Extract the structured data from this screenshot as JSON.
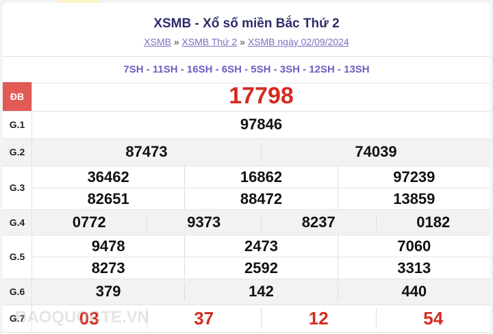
{
  "header": {
    "title": "XSMB - Xổ số miền Bắc Thứ 2"
  },
  "breadcrumb": {
    "items": [
      "XSMB",
      "XSMB Thứ 2",
      "XSMB ngày 02/09/2024"
    ],
    "separator": "»"
  },
  "codes": "7SH - 11SH - 16SH - 6SH - 5SH - 3SH - 12SH - 13SH",
  "prizes": {
    "db": {
      "label": "ĐB",
      "numbers": [
        "17798"
      ]
    },
    "g1": {
      "label": "G.1",
      "numbers": [
        "97846"
      ]
    },
    "g2": {
      "label": "G.2",
      "numbers": [
        "87473",
        "74039"
      ]
    },
    "g3": {
      "label": "G.3",
      "numbers": [
        "36462",
        "16862",
        "97239",
        "82651",
        "88472",
        "13859"
      ]
    },
    "g4": {
      "label": "G.4",
      "numbers": [
        "0772",
        "9373",
        "8237",
        "0182"
      ]
    },
    "g5": {
      "label": "G.5",
      "numbers": [
        "9478",
        "2473",
        "7060",
        "8273",
        "2592",
        "3313"
      ]
    },
    "g6": {
      "label": "G.6",
      "numbers": [
        "379",
        "142",
        "440"
      ]
    },
    "g7": {
      "label": "G.7",
      "numbers": [
        "03",
        "37",
        "12",
        "54"
      ]
    }
  },
  "watermark": "BAOQUOCTE.VN",
  "colors": {
    "accent_red": "#d42b20",
    "title": "#2c2c6a",
    "link": "#7a6cc0",
    "db_badge": "#e05a56"
  }
}
